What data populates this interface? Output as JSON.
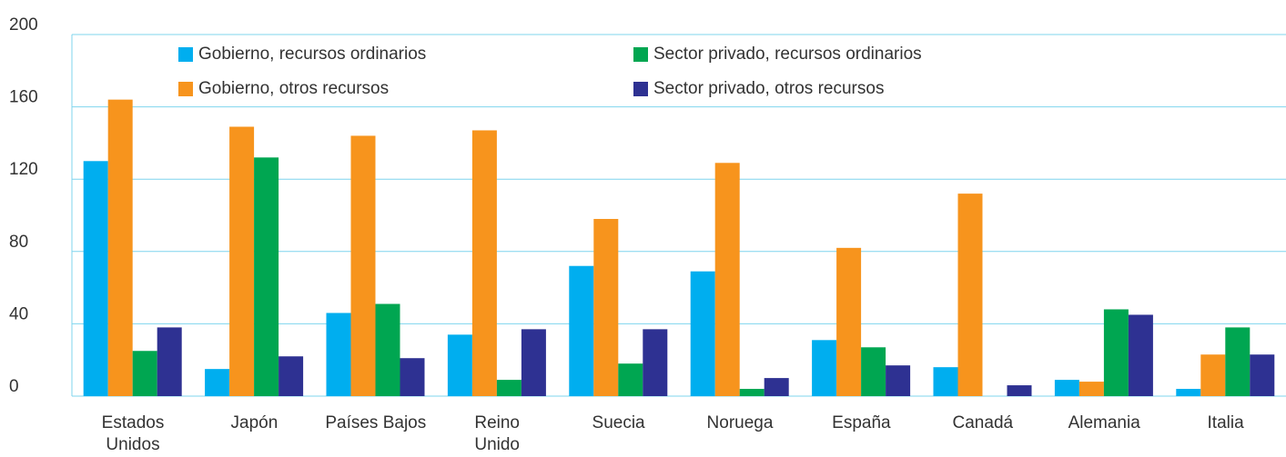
{
  "chart_data": {
    "type": "bar",
    "categories": [
      "Estados\nUnidos",
      "Japón",
      "Países Bajos",
      "Reino\nUnido",
      "Suecia",
      "Noruega",
      "España",
      "Canadá",
      "Alemania",
      "Italia"
    ],
    "series": [
      {
        "name": "Gobierno, recursos ordinarios",
        "color": "#00aeef",
        "values": [
          130,
          15,
          46,
          34,
          72,
          69,
          31,
          16,
          9,
          4
        ]
      },
      {
        "name": "Gobierno, otros recursos",
        "color": "#f7941d",
        "values": [
          164,
          149,
          144,
          147,
          98,
          129,
          82,
          112,
          8,
          23
        ]
      },
      {
        "name": "Sector privado, recursos ordinarios",
        "color": "#00a651",
        "values": [
          25,
          132,
          51,
          9,
          18,
          4,
          27,
          0,
          48,
          38
        ]
      },
      {
        "name": "Sector privado, otros recursos",
        "color": "#2e3192",
        "values": [
          38,
          22,
          21,
          37,
          37,
          10,
          17,
          6,
          45,
          23
        ]
      }
    ],
    "ylim": [
      0,
      200
    ],
    "yticks": [
      0,
      40,
      80,
      120,
      160,
      200
    ],
    "grid": true
  }
}
